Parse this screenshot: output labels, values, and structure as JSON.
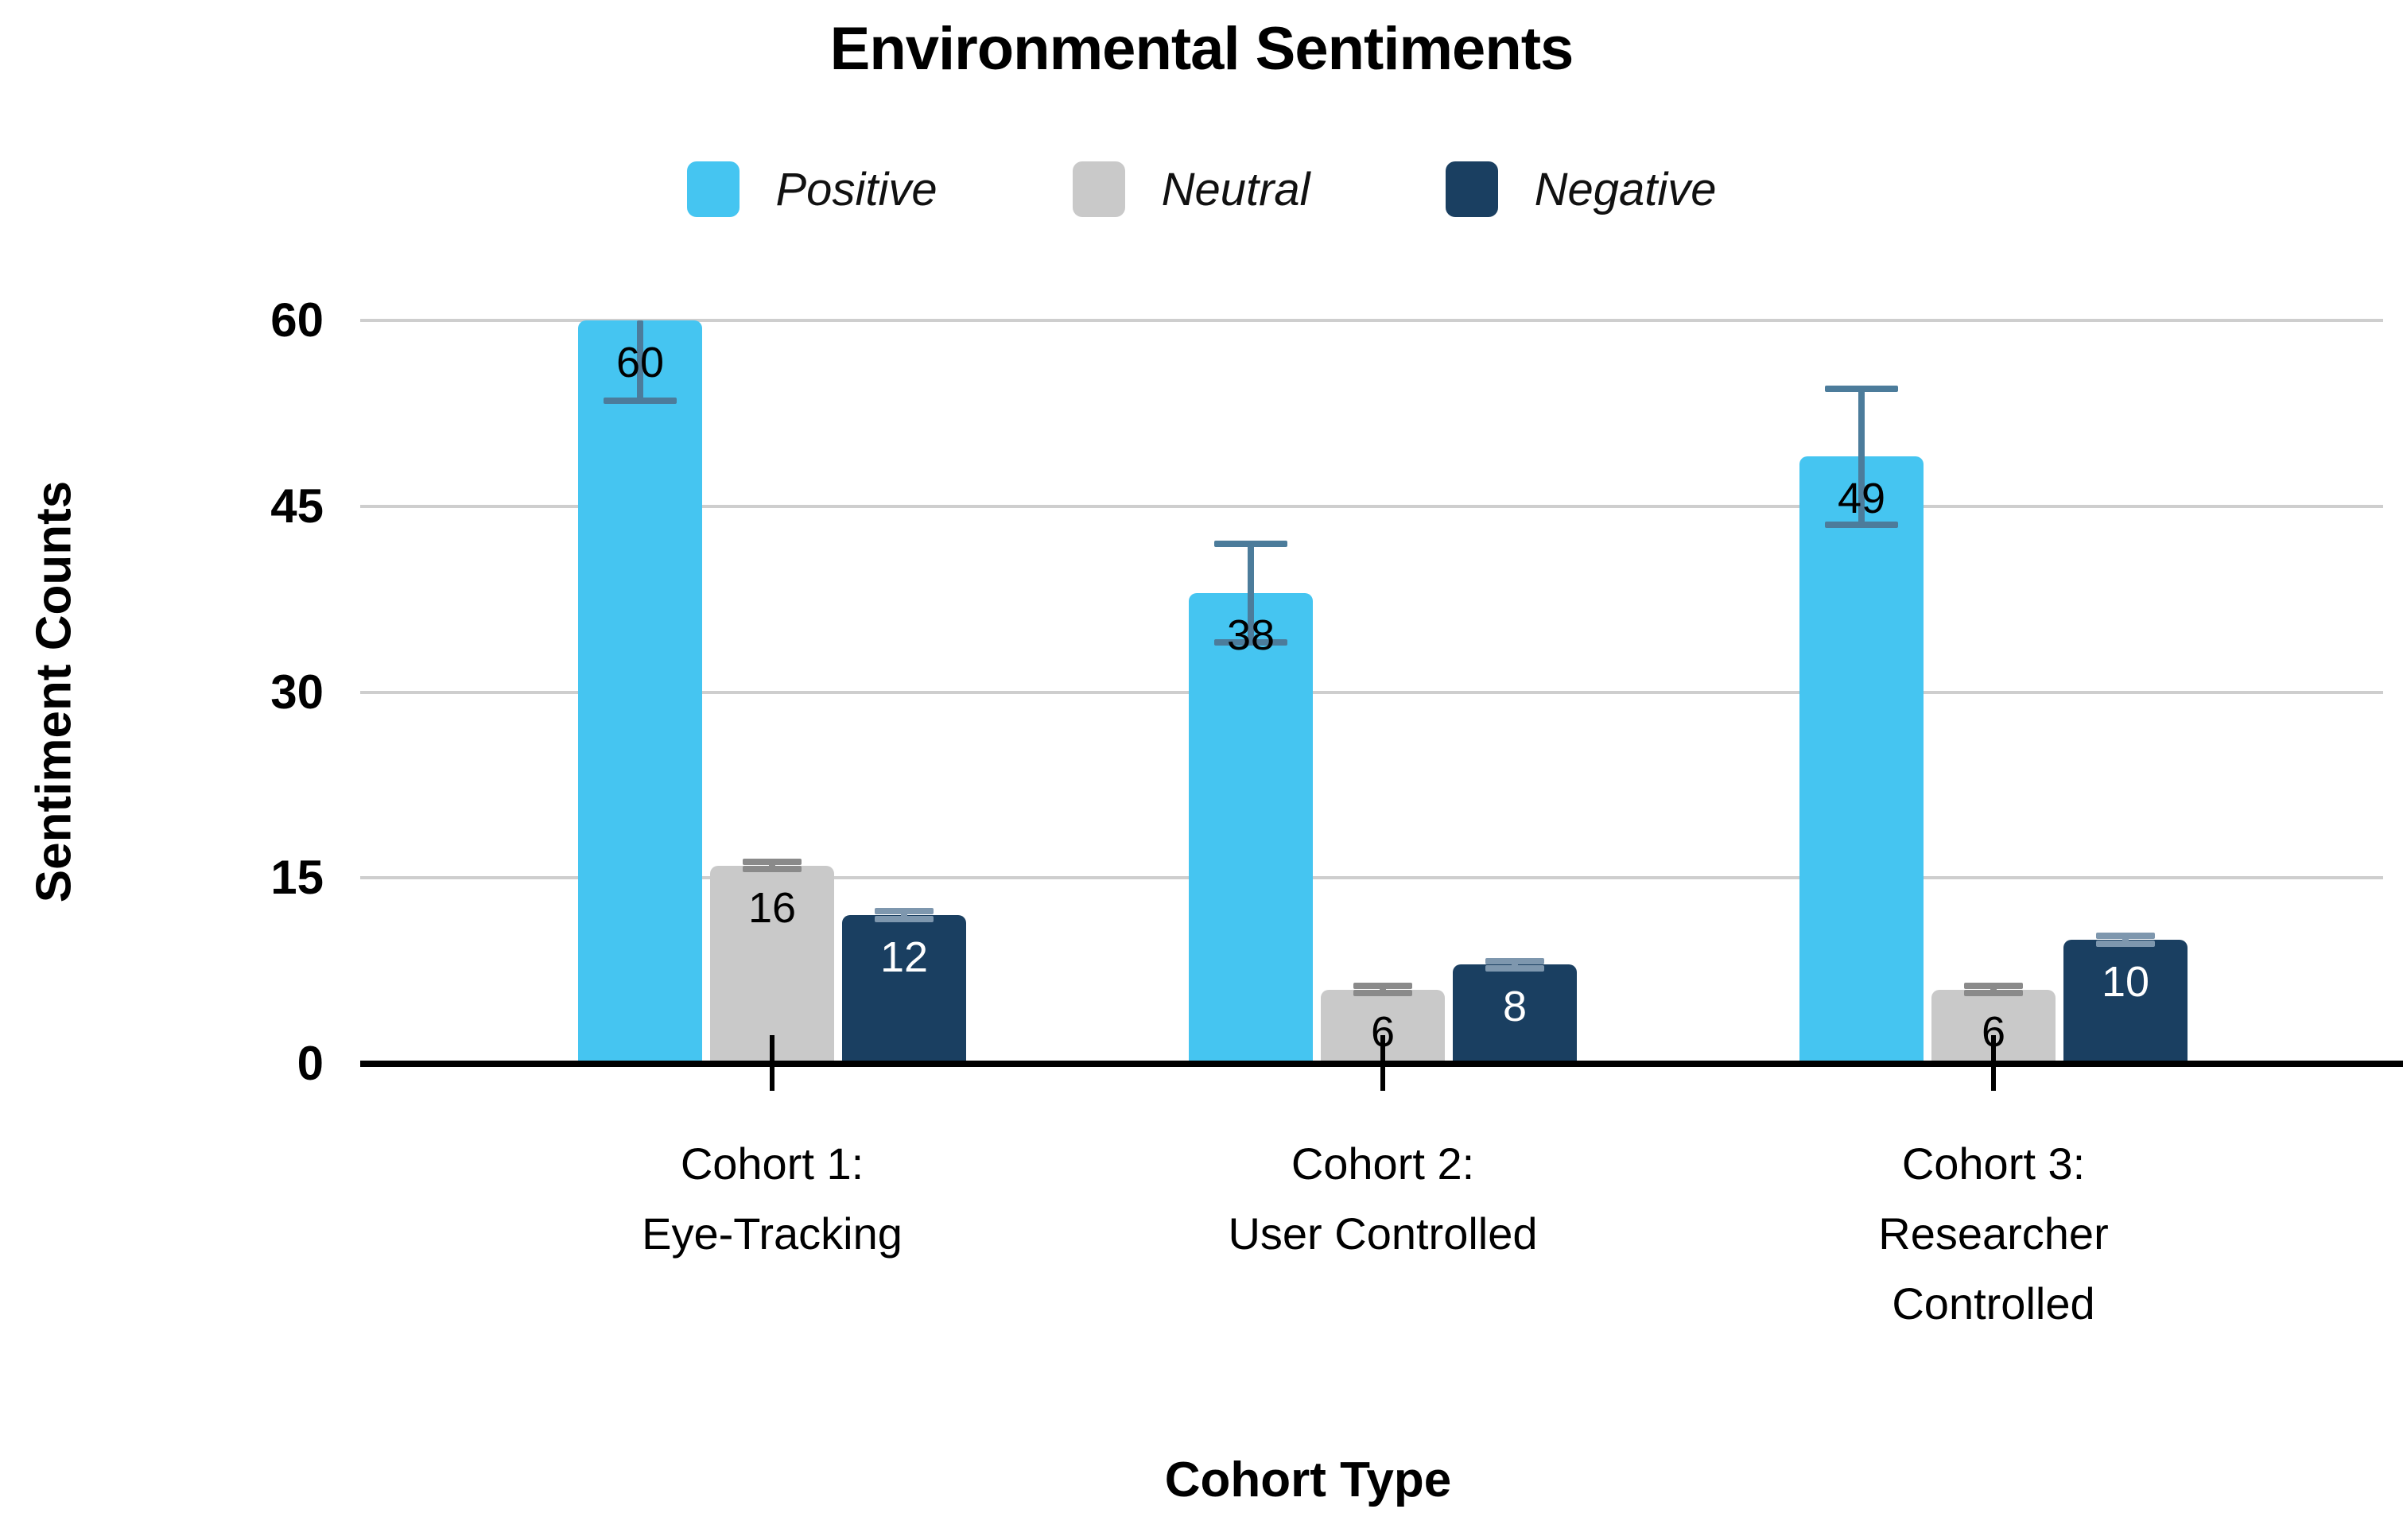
{
  "title": "Environmental Sentiments",
  "chart_data": {
    "type": "bar",
    "title": "Environmental Sentiments",
    "xlabel": "Cohort Type",
    "ylabel": "Sentiment Counts",
    "ylim": [
      0,
      60
    ],
    "y_ticks": [
      0,
      15,
      30,
      45,
      60
    ],
    "grid": true,
    "legend_position": "top",
    "categories": [
      "Cohort 1:\nEye-Tracking",
      "Cohort 2:\nUser Controlled",
      "Cohort 3:\nResearcher\nControlled"
    ],
    "series": [
      {
        "name": "Positive",
        "color": "#45C5F1",
        "values": [
          60,
          38,
          49
        ],
        "errors": [
          6.5,
          4,
          5.5
        ],
        "error_color": "#4C7C9B",
        "label_color": "#000000"
      },
      {
        "name": "Neutral",
        "color": "#C9C9C9",
        "values": [
          16,
          6,
          6
        ],
        "errors": [
          0.3,
          0.3,
          0.3
        ],
        "error_color": "#8A8A8A",
        "label_color": "#000000"
      },
      {
        "name": "Negative",
        "color": "#1A3F61",
        "values": [
          12,
          8,
          10
        ],
        "errors": [
          0.3,
          0.3,
          0.3
        ],
        "error_color": "#7E97AE",
        "label_color": "#FFFFFF"
      }
    ]
  }
}
